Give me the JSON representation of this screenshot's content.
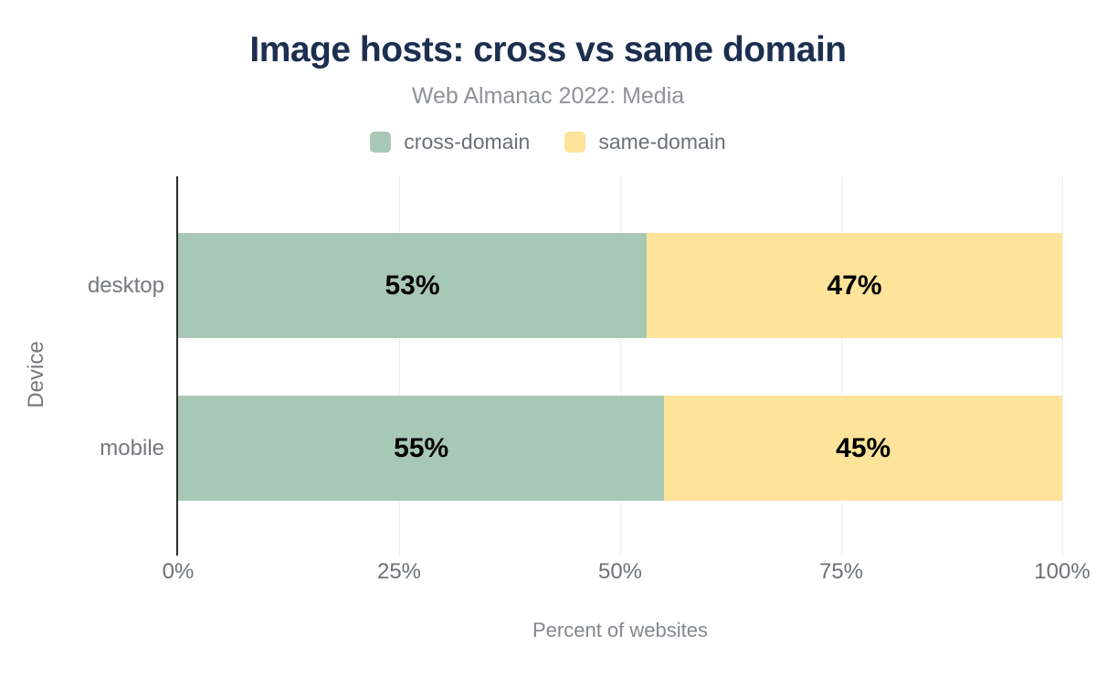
{
  "chart_data": {
    "type": "bar",
    "orientation": "horizontal",
    "stacked": true,
    "title": "Image hosts: cross vs same domain",
    "subtitle": "Web Almanac 2022: Media",
    "categories": [
      "desktop",
      "mobile"
    ],
    "series": [
      {
        "name": "cross-domain",
        "color": "#a8c8b6",
        "values": [
          53,
          55
        ]
      },
      {
        "name": "same-domain",
        "color": "#fde49a",
        "values": [
          47,
          45
        ]
      }
    ],
    "value_suffix": "%",
    "xlabel": "Percent of websites",
    "ylabel": "Device",
    "xlim": [
      0,
      100
    ],
    "x_ticks": [
      {
        "value": 0,
        "label": "0%"
      },
      {
        "value": 25,
        "label": "25%"
      },
      {
        "value": 50,
        "label": "50%"
      },
      {
        "value": 75,
        "label": "75%"
      },
      {
        "value": 100,
        "label": "100%"
      }
    ],
    "grid": "vertical",
    "legend_position": "top",
    "colors": {
      "title_text": "#1c2f51",
      "subtitle_text": "#8f9296",
      "legend_text": "#6b7076",
      "axis_line": "#2b2b2b",
      "grid_line": "#ededed",
      "tick_text": "#6d7175",
      "category_text": "#75787c",
      "bar_label_text": "#000000",
      "background": "#ffffff"
    }
  }
}
